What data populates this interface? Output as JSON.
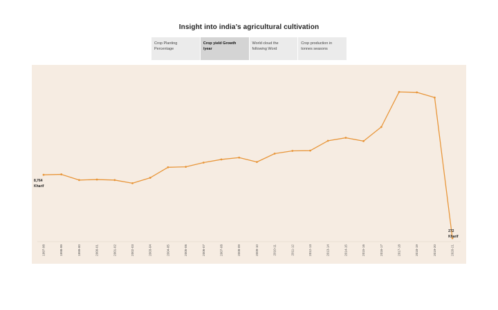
{
  "page": {
    "title": "Insight into india’s agricultural cultivation"
  },
  "tabs": [
    {
      "line1": "Crop Planting",
      "line2": "Percentage",
      "active": false
    },
    {
      "line1": "Crop yield Growth",
      "line2": "/year",
      "active": true
    },
    {
      "line1": "World cloud the",
      "line2": "following Word",
      "active": false
    },
    {
      "line1": "Crop production in",
      "line2": "tonnes seasons",
      "active": false
    }
  ],
  "colors": {
    "line": "#e8963a",
    "plot_background": "#f6ece2"
  },
  "chart_data": {
    "type": "line",
    "title": "",
    "xlabel": "",
    "ylabel": "",
    "categories": [
      "1997-98",
      "1998-99",
      "1999-00",
      "2000-01",
      "2001-02",
      "2002-03",
      "2003-04",
      "2004-05",
      "2005-06",
      "2006-07",
      "2007-08",
      "2008-09",
      "2009-10",
      "2010-11",
      "2011-12",
      "2012-13",
      "2013-14",
      "2014-15",
      "2015-16",
      "2016-17",
      "2017-18",
      "2018-19",
      "2019-20",
      "2020-21"
    ],
    "series": [
      {
        "values": [
          8764,
          8820,
          8060,
          8130,
          8060,
          7640,
          8370,
          9770,
          9830,
          10400,
          10820,
          11070,
          10480,
          11600,
          11970,
          12000,
          13320,
          13720,
          13280,
          15170,
          19860,
          19800,
          19110,
          272
        ]
      }
    ],
    "ylim": [
      0,
      22000
    ],
    "axes_visible": {
      "y": false
    },
    "grid": false,
    "annotations": [
      {
        "index": 0,
        "value_label": "8,764",
        "season": "Kharif"
      },
      {
        "index": 23,
        "value_label": "272",
        "season": "Kharif"
      }
    ]
  }
}
